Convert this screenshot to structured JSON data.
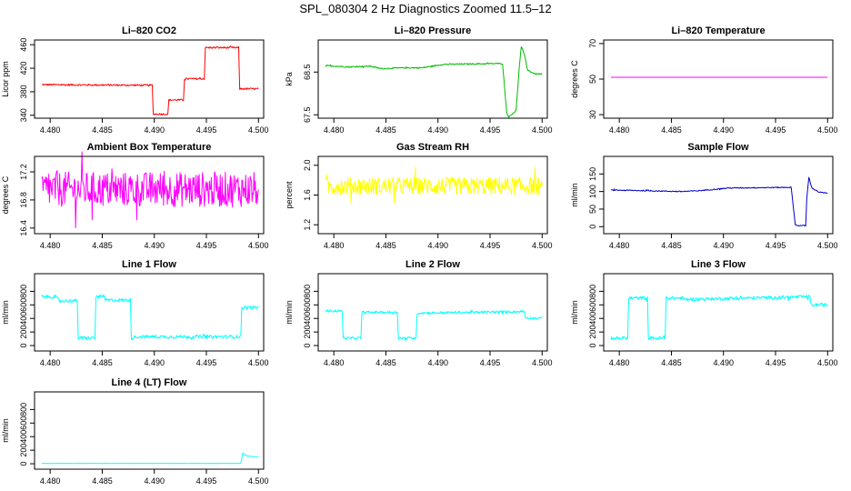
{
  "figure": {
    "title": "SPL_080304  2 Hz Diagnostics Zoomed 11.5–12",
    "colors": {
      "red": "#ff0000",
      "green": "#00bb00",
      "magenta": "#ff00ff",
      "yellow": "#ffff00",
      "blue": "#0000cc",
      "cyan": "#00ffff"
    }
  },
  "chart_data": [
    {
      "id": "co2",
      "type": "line",
      "title": "Li–820 CO2",
      "ylabel": "Licor ppm",
      "xlim": [
        4.4785,
        4.5005
      ],
      "ylim": [
        335,
        468
      ],
      "xticks": [
        4.48,
        4.485,
        4.49,
        4.495,
        4.5
      ],
      "xticklabels": [
        "4.480",
        "4.485",
        "4.490",
        "4.495",
        "4.500"
      ],
      "yticks": [
        340,
        380,
        420,
        460
      ],
      "yticklabels": [
        "340",
        "380",
        "420",
        "460"
      ],
      "color": "#ff0000",
      "noise": 1.5,
      "series": [
        {
          "x": [
            4.4792,
            4.4898,
            4.4899,
            4.4913,
            4.4914,
            4.4928,
            4.4929,
            4.4948,
            4.4949,
            4.4981,
            4.4982,
            4.5
          ],
          "y": [
            392,
            391,
            342,
            342,
            366,
            366,
            402,
            402,
            455,
            455,
            385,
            385
          ]
        }
      ]
    },
    {
      "id": "pressure",
      "type": "line",
      "title": "Li–820 Pressure",
      "ylabel": "kPa",
      "xlim": [
        4.4785,
        4.5005
      ],
      "ylim": [
        67.42,
        69.25
      ],
      "xticks": [
        4.48,
        4.485,
        4.49,
        4.495,
        4.5
      ],
      "xticklabels": [
        "4.480",
        "4.485",
        "4.490",
        "4.495",
        "4.500"
      ],
      "yticks": [
        67.5,
        68.5
      ],
      "yticklabels": [
        "67.5",
        "68.5"
      ],
      "color": "#00bb00",
      "noise": 0.015,
      "series": [
        {
          "x": [
            4.4792,
            4.4815,
            4.4835,
            4.4845,
            4.4868,
            4.4885,
            4.4905,
            4.4962,
            4.4966,
            4.4968,
            4.4975,
            4.4978,
            4.498,
            4.4983,
            4.4986,
            4.49895,
            4.4993,
            4.5
          ],
          "y": [
            68.65,
            68.62,
            68.64,
            68.58,
            68.6,
            68.6,
            68.68,
            68.7,
            67.55,
            67.45,
            67.6,
            68.6,
            69.1,
            68.9,
            68.55,
            68.5,
            68.46,
            68.45
          ]
        }
      ]
    },
    {
      "id": "temperature",
      "type": "line",
      "title": "Li–820 Temperature",
      "ylabel": "degrees C",
      "xlim": [
        4.4785,
        4.5005
      ],
      "ylim": [
        28,
        72
      ],
      "xticks": [
        4.48,
        4.485,
        4.49,
        4.495,
        4.5
      ],
      "xticklabels": [
        "4.480",
        "4.485",
        "4.490",
        "4.495",
        "4.500"
      ],
      "yticks": [
        30,
        50,
        70
      ],
      "yticklabels": [
        "30",
        "50",
        "70"
      ],
      "color": "#ff00ff",
      "noise": 0,
      "series": [
        {
          "x": [
            4.4792,
            4.5
          ],
          "y": [
            51,
            51
          ]
        }
      ]
    },
    {
      "id": "ambient",
      "type": "line",
      "title": "Ambient Box Temperature",
      "ylabel": "degrees C",
      "xlim": [
        4.4785,
        4.5005
      ],
      "ylim": [
        16.32,
        17.42
      ],
      "xticks": [
        4.48,
        4.485,
        4.49,
        4.495,
        4.5
      ],
      "xticklabels": [
        "4.480",
        "4.485",
        "4.490",
        "4.495",
        "4.500"
      ],
      "yticks": [
        16.4,
        16.8,
        17.2
      ],
      "yticklabels": [
        "16.4",
        "16.8",
        "17.2"
      ],
      "color": "#ff00ff",
      "noise": 0.25,
      "series": [
        {
          "x": [
            4.4792,
            4.5
          ],
          "y": [
            16.95,
            16.95
          ]
        }
      ]
    },
    {
      "id": "rh",
      "type": "line",
      "title": "Gas Stream RH",
      "ylabel": "percent",
      "xlim": [
        4.4785,
        4.5005
      ],
      "ylim": [
        1.08,
        2.12
      ],
      "xticks": [
        4.48,
        4.485,
        4.49,
        4.495,
        4.5
      ],
      "xticklabels": [
        "4.480",
        "4.485",
        "4.490",
        "4.495",
        "4.500"
      ],
      "yticks": [
        1.2,
        1.6,
        2.0
      ],
      "yticklabels": [
        "1.2",
        "1.6",
        "2.0"
      ],
      "color": "#ffff00",
      "noise": 0.12,
      "series": [
        {
          "x": [
            4.4792,
            4.5
          ],
          "y": [
            1.72,
            1.72
          ]
        }
      ]
    },
    {
      "id": "sampleflow",
      "type": "line",
      "title": "Sample Flow",
      "ylabel": "ml/min",
      "xlim": [
        4.4785,
        4.5005
      ],
      "ylim": [
        -20,
        200
      ],
      "xticks": [
        4.48,
        4.485,
        4.49,
        4.495,
        4.5
      ],
      "xticklabels": [
        "4.480",
        "4.485",
        "4.490",
        "4.495",
        "4.500"
      ],
      "yticks": [
        0,
        50,
        100,
        150
      ],
      "yticklabels": [
        "0",
        "50",
        "100",
        "150"
      ],
      "color": "#0000cc",
      "noise": 1.5,
      "series": [
        {
          "x": [
            4.4792,
            4.4815,
            4.486,
            4.4875,
            4.4905,
            4.4965,
            4.4969,
            4.4972,
            4.4979,
            4.498,
            4.4982,
            4.4985,
            4.4992,
            4.5
          ],
          "y": [
            104,
            103,
            100,
            102,
            110,
            112,
            5,
            3,
            3,
            80,
            140,
            110,
            98,
            95
          ]
        }
      ]
    },
    {
      "id": "line1",
      "type": "line",
      "title": "Line 1 Flow",
      "ylabel": "ml/min",
      "xlim": [
        4.4785,
        4.5005
      ],
      "ylim": [
        -80,
        1060
      ],
      "xticks": [
        4.48,
        4.485,
        4.49,
        4.495,
        4.5
      ],
      "xticklabels": [
        "4.480",
        "4.485",
        "4.490",
        "4.495",
        "4.500"
      ],
      "yticks": [
        0,
        200,
        400,
        600,
        800
      ],
      "yticklabels": [
        "0",
        "200",
        "400",
        "600",
        "800"
      ],
      "color": "#00ffff",
      "noise": 25,
      "series": [
        {
          "x": [
            4.4792,
            4.4805,
            4.4809,
            4.4826,
            4.4827,
            4.4843,
            4.4844,
            4.4852,
            4.4853,
            4.4877,
            4.4878,
            4.4882,
            4.4983,
            4.4984,
            4.5
          ],
          "y": [
            720,
            720,
            660,
            660,
            110,
            110,
            720,
            720,
            670,
            670,
            110,
            130,
            130,
            560,
            560
          ]
        }
      ]
    },
    {
      "id": "line2",
      "type": "line",
      "title": "Line 2 Flow",
      "ylabel": "ml/min",
      "xlim": [
        4.4785,
        4.5005
      ],
      "ylim": [
        -80,
        1060
      ],
      "xticks": [
        4.48,
        4.485,
        4.49,
        4.495,
        4.5
      ],
      "xticklabels": [
        "4.480",
        "4.485",
        "4.490",
        "4.495",
        "4.500"
      ],
      "yticks": [
        0,
        200,
        400,
        600,
        800
      ],
      "yticklabels": [
        "0",
        "200",
        "400",
        "600",
        "800"
      ],
      "color": "#00ffff",
      "noise": 18,
      "series": [
        {
          "x": [
            4.4792,
            4.4808,
            4.4809,
            4.4826,
            4.4827,
            4.4861,
            4.4862,
            4.4879,
            4.488,
            4.4983,
            4.4984,
            4.5
          ],
          "y": [
            510,
            510,
            110,
            110,
            490,
            490,
            110,
            110,
            480,
            500,
            410,
            400
          ]
        }
      ]
    },
    {
      "id": "line3",
      "type": "line",
      "title": "Line 3 Flow",
      "ylabel": "ml/min",
      "xlim": [
        4.4785,
        4.5005
      ],
      "ylim": [
        -80,
        1060
      ],
      "xticks": [
        4.48,
        4.485,
        4.49,
        4.495,
        4.5
      ],
      "xticklabels": [
        "4.480",
        "4.485",
        "4.490",
        "4.495",
        "4.500"
      ],
      "yticks": [
        0,
        200,
        400,
        600,
        800
      ],
      "yticklabels": [
        "0",
        "200",
        "400",
        "600",
        "800"
      ],
      "color": "#00ffff",
      "noise": 25,
      "series": [
        {
          "x": [
            4.4792,
            4.4808,
            4.4809,
            4.4827,
            4.4828,
            4.4844,
            4.4845,
            4.4861,
            4.4862,
            4.4983,
            4.4984,
            4.5
          ],
          "y": [
            110,
            110,
            700,
            700,
            110,
            110,
            700,
            700,
            680,
            720,
            600,
            600
          ]
        }
      ]
    },
    {
      "id": "line4",
      "type": "line",
      "title": "Line 4 (LT) Flow",
      "ylabel": "ml/min",
      "xlim": [
        4.4785,
        4.5005
      ],
      "ylim": [
        -80,
        1060
      ],
      "xticks": [
        4.48,
        4.485,
        4.49,
        4.495,
        4.5
      ],
      "xticklabels": [
        "4.480",
        "4.485",
        "4.490",
        "4.495",
        "4.500"
      ],
      "yticks": [
        0,
        200,
        400,
        600,
        800
      ],
      "yticklabels": [
        "0",
        "200",
        "400",
        "600",
        "800"
      ],
      "color": "#00ffff",
      "noise": 1,
      "series": [
        {
          "x": [
            4.4792,
            4.4983,
            4.4984,
            4.4985,
            4.4989,
            4.4995,
            4.5
          ],
          "y": [
            5,
            5,
            80,
            160,
            115,
            105,
            105
          ]
        }
      ]
    }
  ]
}
